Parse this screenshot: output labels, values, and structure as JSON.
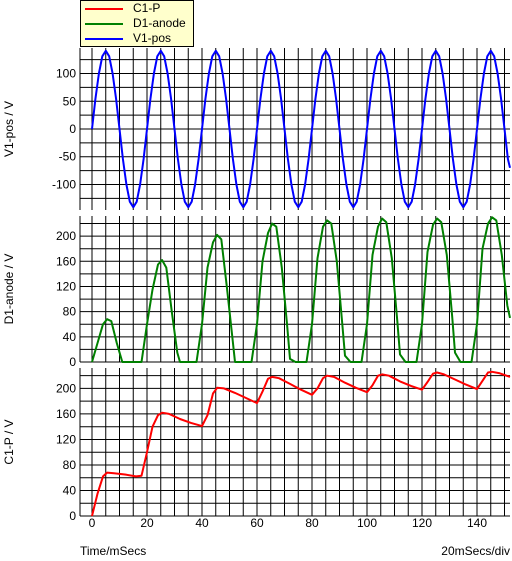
{
  "chart_data": [
    {
      "type": "line",
      "ylabel": "V1-pos / V",
      "ylim": [
        -146,
        146
      ],
      "yticks": [
        -100,
        -50,
        0,
        50,
        100
      ],
      "xlim": [
        0,
        152
      ],
      "xticks": [
        0,
        20,
        40,
        60,
        80,
        100,
        120,
        140
      ],
      "grid": true,
      "series": [
        {
          "name": "V1-pos",
          "color": "#0000ff",
          "x": [
            0,
            1.25,
            2.5,
            3.75,
            5,
            6.25,
            7.5,
            8.75,
            10,
            11.25,
            12.5,
            13.75,
            15,
            16.25,
            17.5,
            18.75,
            20,
            21.25,
            22.5,
            23.75,
            25,
            26.25,
            27.5,
            28.75,
            30,
            31.25,
            32.5,
            33.75,
            35,
            36.25,
            37.5,
            38.75,
            40,
            41.25,
            42.5,
            43.75,
            45,
            46.25,
            47.5,
            48.75,
            50,
            51.25,
            52.5,
            53.75,
            55,
            56.25,
            57.5,
            58.75,
            60,
            61.25,
            62.5,
            63.75,
            65,
            66.25,
            67.5,
            68.75,
            70,
            71.25,
            72.5,
            73.75,
            75,
            76.25,
            77.5,
            78.75,
            80,
            81.25,
            82.5,
            83.75,
            85,
            86.25,
            87.5,
            88.75,
            90,
            91.25,
            92.5,
            93.75,
            95,
            96.25,
            97.5,
            98.75,
            100,
            101.25,
            102.5,
            103.75,
            105,
            106.25,
            107.5,
            108.75,
            110,
            111.25,
            112.5,
            113.75,
            115,
            116.25,
            117.5,
            118.75,
            120,
            121.25,
            122.5,
            123.75,
            125,
            126.25,
            127.5,
            128.75,
            130,
            131.25,
            132.5,
            133.75,
            135,
            136.25,
            137.5,
            138.75,
            140,
            141.25,
            142.5,
            143.75,
            145,
            146.25,
            147.5,
            148.75,
            150,
            151.25,
            152
          ],
          "values": [
            0,
            54,
            100,
            131,
            141,
            131,
            100,
            54,
            0,
            -54,
            -100,
            -131,
            -141,
            -131,
            -100,
            -54,
            0,
            54,
            100,
            131,
            141,
            131,
            100,
            54,
            0,
            -54,
            -100,
            -131,
            -141,
            -131,
            -100,
            -54,
            0,
            54,
            100,
            131,
            141,
            131,
            100,
            54,
            0,
            -54,
            -100,
            -131,
            -141,
            -131,
            -100,
            -54,
            0,
            54,
            100,
            131,
            141,
            131,
            100,
            54,
            0,
            -54,
            -100,
            -131,
            -141,
            -131,
            -100,
            -54,
            0,
            54,
            100,
            131,
            141,
            131,
            100,
            54,
            0,
            -54,
            -100,
            -131,
            -141,
            -131,
            -100,
            -54,
            0,
            54,
            100,
            131,
            141,
            131,
            100,
            54,
            0,
            -54,
            -100,
            -131,
            -141,
            -131,
            -100,
            -54,
            0,
            54,
            100,
            131,
            141,
            131,
            100,
            54,
            0,
            -54,
            -100,
            -131,
            -141,
            -131,
            -100,
            -54,
            0,
            54,
            100,
            131,
            141,
            131,
            100,
            54,
            0,
            -54,
            -70
          ]
        }
      ]
    },
    {
      "type": "line",
      "ylabel": "D1-anode / V",
      "ylim": [
        0,
        232
      ],
      "yticks": [
        0,
        40,
        80,
        120,
        160,
        200
      ],
      "xlim": [
        0,
        152
      ],
      "xticks": [
        0,
        20,
        40,
        60,
        80,
        100,
        120,
        140
      ],
      "grid": true,
      "series": [
        {
          "name": "D1-anode",
          "color": "#008000",
          "x": [
            0,
            2,
            4,
            5.5,
            7,
            9,
            11,
            12,
            14,
            16,
            18,
            20,
            22,
            24,
            25.5,
            27,
            29,
            31,
            32,
            34,
            36,
            38,
            40,
            42,
            44,
            45.5,
            47,
            49,
            51,
            52,
            54,
            56,
            58,
            60,
            62,
            64,
            65.5,
            67,
            69,
            71,
            72,
            74,
            76,
            78,
            80,
            82,
            84,
            85.5,
            87,
            89,
            91,
            92,
            94,
            96,
            98,
            100,
            102,
            104,
            105.5,
            107,
            109,
            111,
            112,
            114,
            116,
            118,
            120,
            122,
            124,
            125.5,
            127,
            129,
            131,
            132,
            134,
            136,
            138,
            140,
            142,
            144,
            145.5,
            147,
            149,
            151,
            152
          ],
          "values": [
            0,
            30,
            60,
            68,
            65,
            30,
            0,
            0,
            0,
            0,
            0,
            60,
            115,
            155,
            162,
            150,
            80,
            15,
            0,
            0,
            0,
            0,
            60,
            150,
            190,
            202,
            195,
            120,
            40,
            0,
            0,
            0,
            0,
            60,
            160,
            205,
            220,
            215,
            150,
            55,
            5,
            0,
            0,
            0,
            60,
            165,
            215,
            225,
            220,
            160,
            60,
            10,
            0,
            0,
            0,
            60,
            170,
            215,
            228,
            222,
            165,
            65,
            12,
            0,
            0,
            0,
            60,
            175,
            218,
            228,
            222,
            170,
            70,
            15,
            0,
            0,
            0,
            60,
            180,
            220,
            230,
            225,
            170,
            90,
            70
          ]
        }
      ]
    },
    {
      "type": "line",
      "ylabel": "C1-P / V",
      "ylim": [
        0,
        232
      ],
      "yticks": [
        0,
        40,
        80,
        120,
        160,
        200
      ],
      "xlim": [
        0,
        152
      ],
      "xticks": [
        0,
        20,
        40,
        60,
        80,
        100,
        120,
        140
      ],
      "xlabel": "Time/mSecs",
      "grid": true,
      "series": [
        {
          "name": "C1-P",
          "color": "#ff0000",
          "x": [
            0,
            2,
            4,
            5.5,
            8,
            12,
            16,
            18,
            20,
            22,
            24,
            25.5,
            28,
            32,
            36,
            40,
            42,
            44,
            45.5,
            48,
            52,
            56,
            60,
            62,
            64,
            65.5,
            68,
            72,
            76,
            80,
            82,
            84,
            85.5,
            88,
            92,
            96,
            100,
            102,
            104,
            105.5,
            108,
            112,
            116,
            120,
            122,
            124,
            125.5,
            128,
            132,
            136,
            140,
            142,
            144,
            145.5,
            148,
            152
          ],
          "values": [
            0,
            35,
            62,
            68,
            67,
            65,
            62,
            63,
            100,
            140,
            158,
            162,
            160,
            152,
            146,
            141,
            158,
            192,
            201,
            200,
            193,
            185,
            177,
            195,
            215,
            218,
            216,
            207,
            198,
            190,
            200,
            216,
            220,
            218,
            209,
            201,
            194,
            205,
            220,
            222,
            220,
            211,
            204,
            198,
            210,
            223,
            225,
            222,
            214,
            206,
            199,
            212,
            225,
            226,
            224,
            218
          ]
        }
      ]
    }
  ],
  "legend": [
    {
      "label": "C1-P",
      "color": "#ff0000"
    },
    {
      "label": "D1-anode",
      "color": "#008000"
    },
    {
      "label": "V1-pos",
      "color": "#0000ff"
    }
  ],
  "footer": {
    "xlabel": "Time/mSecs",
    "scale": "20mSecs/div"
  }
}
